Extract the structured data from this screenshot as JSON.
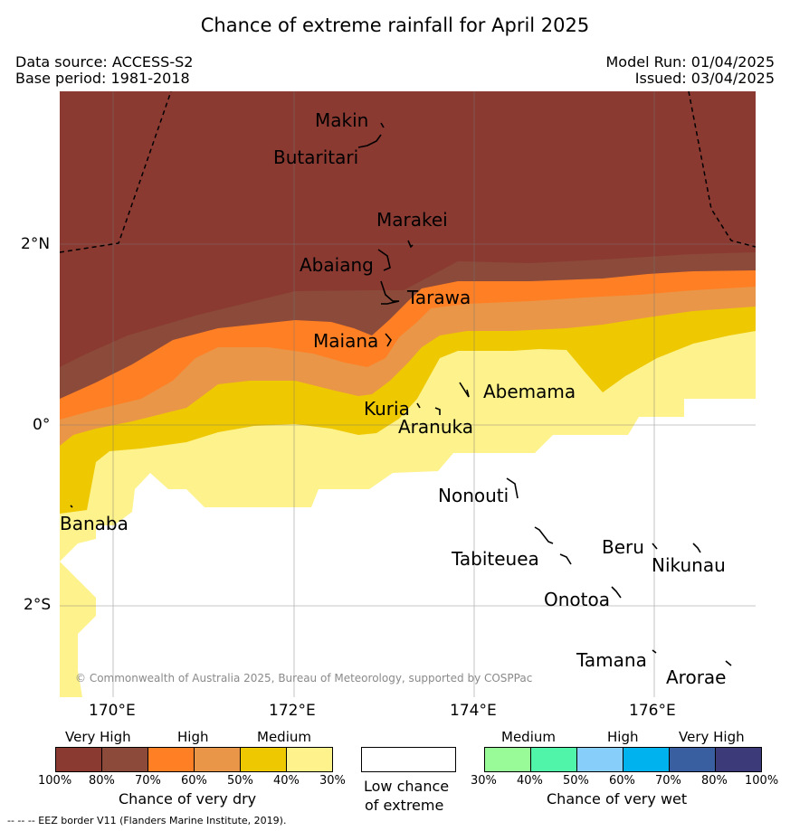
{
  "title": "Chance of extreme rainfall for April 2025",
  "header": {
    "data_source": "Data source: ACCESS-S2",
    "base_period": "Base period: 1981-2018",
    "model_run": "Model Run: 01/04/2025",
    "issued": "Issued: 03/04/2025"
  },
  "axes": {
    "lat_labels": [
      "2°N",
      "0°",
      "2°S"
    ],
    "lon_labels": [
      "170°E",
      "172°E",
      "174°E",
      "176°E"
    ]
  },
  "places": [
    "Makin",
    "Butaritari",
    "Marakei",
    "Abaiang",
    "Tarawa",
    "Maiana",
    "Abemama",
    "Kuria",
    "Aranuka",
    "Nonouti",
    "Banaba",
    "Tabiteuea",
    "Beru",
    "Nikunau",
    "Onotoa",
    "Tamana",
    "Arorae"
  ],
  "copyright": "© Commonwealth of Australia 2025, Bureau of Meteorology, supported by COSPPac",
  "colors": {
    "dry_very_high_1": "#8b3a32",
    "dry_very_high_2": "#8b4a3a",
    "dry_high_1": "#ff7f24",
    "dry_high_2": "#ea9648",
    "dry_medium_1": "#eec800",
    "dry_medium_2": "#fdf28b",
    "low": "#ffffff",
    "wet_medium_1": "#98fb98",
    "wet_medium_2": "#50f5aa",
    "wet_high_1": "#87cefa",
    "wet_high_2": "#00b2ee",
    "wet_very_high_1": "#3a5fa0",
    "wet_very_high_2": "#3d3a7a"
  },
  "legend": {
    "dry": {
      "categories": [
        "Very High",
        "High",
        "Medium"
      ],
      "ticks": [
        "100%",
        "80%",
        "70%",
        "60%",
        "50%",
        "40%",
        "30%"
      ],
      "caption": "Chance of very dry"
    },
    "low": {
      "caption_line1": "Low chance",
      "caption_line2": "of extreme"
    },
    "wet": {
      "categories": [
        "Medium",
        "High",
        "Very High"
      ],
      "ticks": [
        "30%",
        "40%",
        "50%",
        "60%",
        "70%",
        "80%",
        "100%"
      ],
      "caption": "Chance of very wet"
    }
  },
  "footer": "--  --  -- EEZ border V11 (Flanders Marine Institute, 2019)."
}
